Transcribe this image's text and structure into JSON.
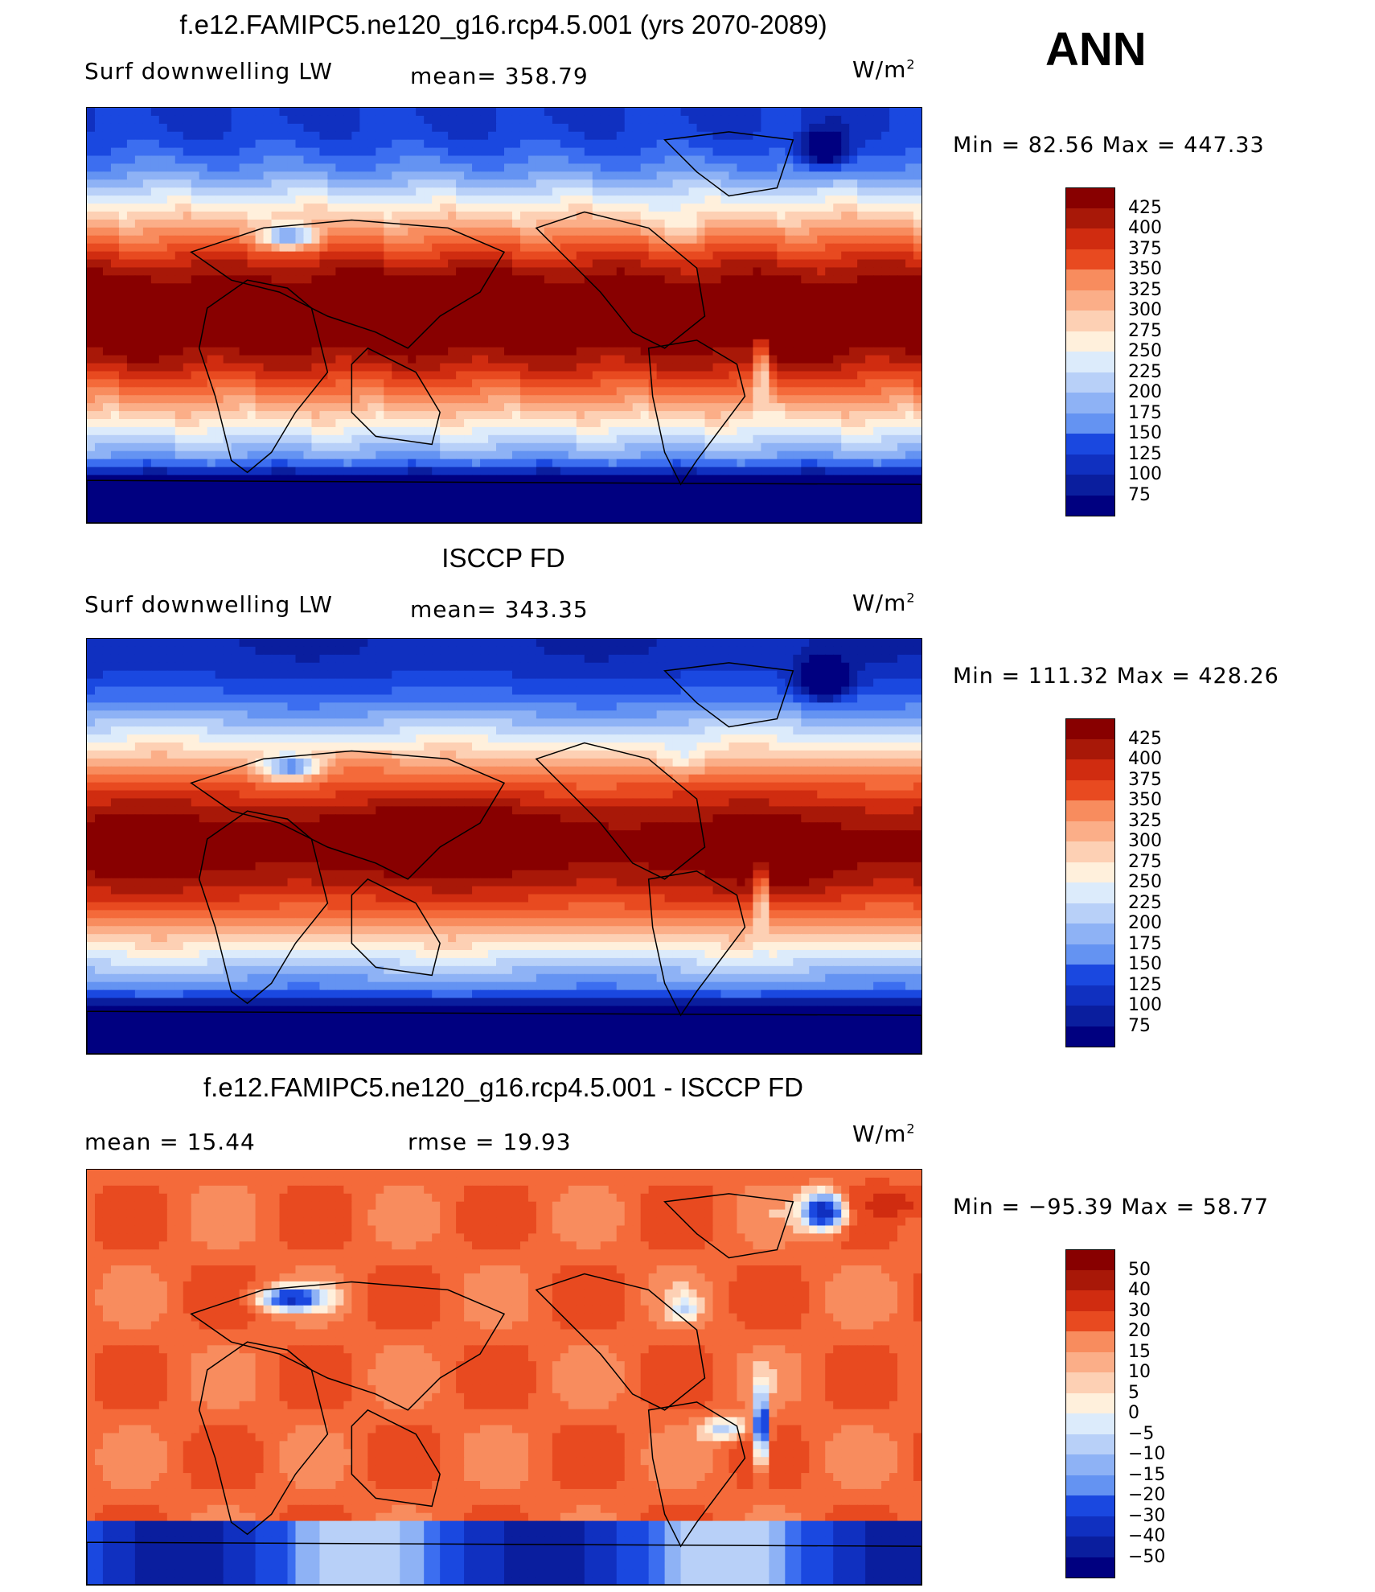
{
  "corner_label": "ANN",
  "palette_main": [
    "#000080",
    "#0A1E9E",
    "#1030C0",
    "#1A48E0",
    "#3C6EF0",
    "#6493F2",
    "#8EB2F5",
    "#B8D0F8",
    "#DCEBFB",
    "#FFF0DC",
    "#FDD0B4",
    "#FBAE88",
    "#F88C5E",
    "#F46A3A",
    "#E84A20",
    "#D02C10",
    "#A81808",
    "#880000"
  ],
  "chart_data": [
    {
      "type": "heatmap",
      "title": "f.e12.FAMIPC5.ne120_g16.rcp4.5.001 (yrs 2070-2089)",
      "left_label": "Surf  downwelling  LW",
      "center_label": "mean=  358.79",
      "units": "W/m",
      "units_sup": "2",
      "minmax_label": "Min  =    82.56  Max  =  447.33",
      "min": 82.56,
      "max": 447.33,
      "mean": 358.79,
      "levels": [
        "425",
        "400",
        "375",
        "350",
        "325",
        "300",
        "275",
        "250",
        "225",
        "200",
        "175",
        "150",
        "125",
        "100",
        "75"
      ],
      "field": "model"
    },
    {
      "type": "heatmap",
      "title": "ISCCP FD",
      "left_label": "Surf  downwelling  LW",
      "center_label": "mean=  343.35",
      "units": "W/m",
      "units_sup": "2",
      "minmax_label": "Min  =  111.32  Max  =  428.26",
      "min": 111.32,
      "max": 428.26,
      "mean": 343.35,
      "levels": [
        "425",
        "400",
        "375",
        "350",
        "325",
        "300",
        "275",
        "250",
        "225",
        "200",
        "175",
        "150",
        "125",
        "100",
        "75"
      ],
      "field": "obs"
    },
    {
      "type": "heatmap",
      "title": "f.e12.FAMIPC5.ne120_g16.rcp4.5.001 - ISCCP FD",
      "left_label": "mean  =    15.44",
      "center_label": "rmse  =    19.93",
      "units": "W/m",
      "units_sup": "2",
      "minmax_label": "Min  =  −95.39  Max  =    58.77",
      "min": -95.39,
      "max": 58.77,
      "mean": 15.44,
      "rmse": 19.93,
      "levels": [
        "50",
        "40",
        "30",
        "20",
        "15",
        "10",
        "5",
        "0",
        "−5",
        "−10",
        "−15",
        "−20",
        "−30",
        "−40",
        "−50"
      ],
      "field": "diff"
    }
  ]
}
